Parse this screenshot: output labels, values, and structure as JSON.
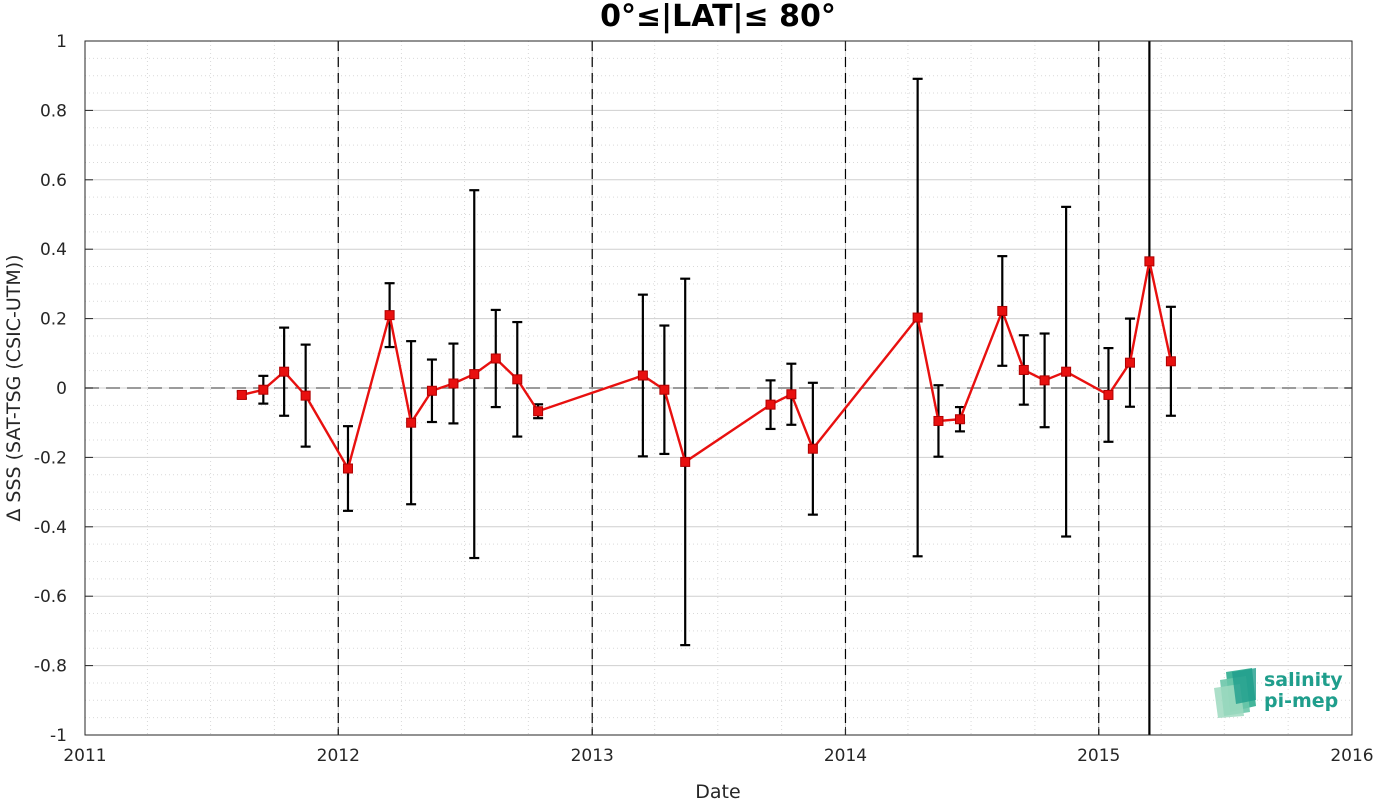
{
  "chart_data": {
    "type": "line",
    "title": "0°≤|LAT|≤ 80°",
    "xlabel": "Date",
    "ylabel": "Δ SSS (SAT-TSG (CSIC-UTM))",
    "x_is_date": true,
    "xlim": [
      "2011-01-01",
      "2016-01-01"
    ],
    "ylim": [
      -1,
      1
    ],
    "xticks": [
      {
        "date": "2011-01-01",
        "label": "2011"
      },
      {
        "date": "2012-01-01",
        "label": "2012"
      },
      {
        "date": "2013-01-01",
        "label": "2013"
      },
      {
        "date": "2014-01-01",
        "label": "2014"
      },
      {
        "date": "2015-01-01",
        "label": "2015"
      },
      {
        "date": "2016-01-01",
        "label": "2016"
      }
    ],
    "yticks": [
      {
        "value": 1,
        "label": "1"
      },
      {
        "value": 0.8,
        "label": "0.8"
      },
      {
        "value": 0.6,
        "label": "0.6"
      },
      {
        "value": 0.4,
        "label": "0.4"
      },
      {
        "value": 0.2,
        "label": "0.2"
      },
      {
        "value": 0,
        "label": "0"
      },
      {
        "value": -0.2,
        "label": "-0.2"
      },
      {
        "value": -0.4,
        "label": "-0.4"
      },
      {
        "value": -0.6,
        "label": "-0.6"
      },
      {
        "value": -0.8,
        "label": "-0.8"
      },
      {
        "value": -1,
        "label": "-1"
      }
    ],
    "grid": true,
    "minor_grid": true,
    "year_boundary_dashed_lines": [
      "2012-01-01",
      "2013-01-01",
      "2014-01-01",
      "2015-01-01"
    ],
    "zero_reference_line": 0,
    "series": [
      {
        "color": "#e8100f",
        "marker": "square",
        "errorbar_color": "#000000",
        "points": [
          {
            "x": "2011-08-15",
            "y": -0.02,
            "err": 0.01
          },
          {
            "x": "2011-09-15",
            "y": -0.005,
            "err": 0.04
          },
          {
            "x": "2011-10-15",
            "y": 0.047,
            "err": 0.127
          },
          {
            "x": "2011-11-15",
            "y": -0.022,
            "err": 0.147
          },
          {
            "x": "2012-01-15",
            "y": -0.232,
            "err": 0.122
          },
          {
            "x": "2012-03-15",
            "y": 0.21,
            "err": 0.092
          },
          {
            "x": "2012-04-15",
            "y": -0.1,
            "err": 0.235
          },
          {
            "x": "2012-05-15",
            "y": -0.008,
            "err": 0.09
          },
          {
            "x": "2012-06-15",
            "y": 0.013,
            "err": 0.115
          },
          {
            "x": "2012-07-15",
            "y": 0.04,
            "err": 0.53
          },
          {
            "x": "2012-08-15",
            "y": 0.085,
            "err": 0.14
          },
          {
            "x": "2012-09-15",
            "y": 0.025,
            "err": 0.165
          },
          {
            "x": "2012-10-15",
            "y": -0.067,
            "err": 0.02
          },
          {
            "x": "2013-03-15",
            "y": 0.036,
            "err": 0.233
          },
          {
            "x": "2013-04-15",
            "y": -0.005,
            "err": 0.185
          },
          {
            "x": "2013-05-15",
            "y": -0.213,
            "err": 0.528
          },
          {
            "x": "2013-09-15",
            "y": -0.048,
            "err": 0.07
          },
          {
            "x": "2013-10-15",
            "y": -0.018,
            "err": 0.088
          },
          {
            "x": "2013-11-15",
            "y": -0.175,
            "err": 0.19
          },
          {
            "x": "2014-04-15",
            "y": 0.203,
            "err": 0.688
          },
          {
            "x": "2014-05-15",
            "y": -0.095,
            "err": 0.103
          },
          {
            "x": "2014-06-15",
            "y": -0.09,
            "err": 0.035
          },
          {
            "x": "2014-08-15",
            "y": 0.222,
            "err": 0.158
          },
          {
            "x": "2014-09-15",
            "y": 0.052,
            "err": 0.1
          },
          {
            "x": "2014-10-15",
            "y": 0.022,
            "err": 0.135
          },
          {
            "x": "2014-11-15",
            "y": 0.047,
            "err": 0.475
          },
          {
            "x": "2015-01-15",
            "y": -0.02,
            "err": 0.135
          },
          {
            "x": "2015-02-15",
            "y": 0.073,
            "err": 0.127
          },
          {
            "x": "2015-03-15",
            "y": 0.365,
            "err": 1.5
          },
          {
            "x": "2015-04-15",
            "y": 0.077,
            "err": 0.157
          }
        ]
      }
    ]
  },
  "logo": {
    "line1": "salinity",
    "line2": "pi-mep",
    "color": "#1f9e8c"
  }
}
